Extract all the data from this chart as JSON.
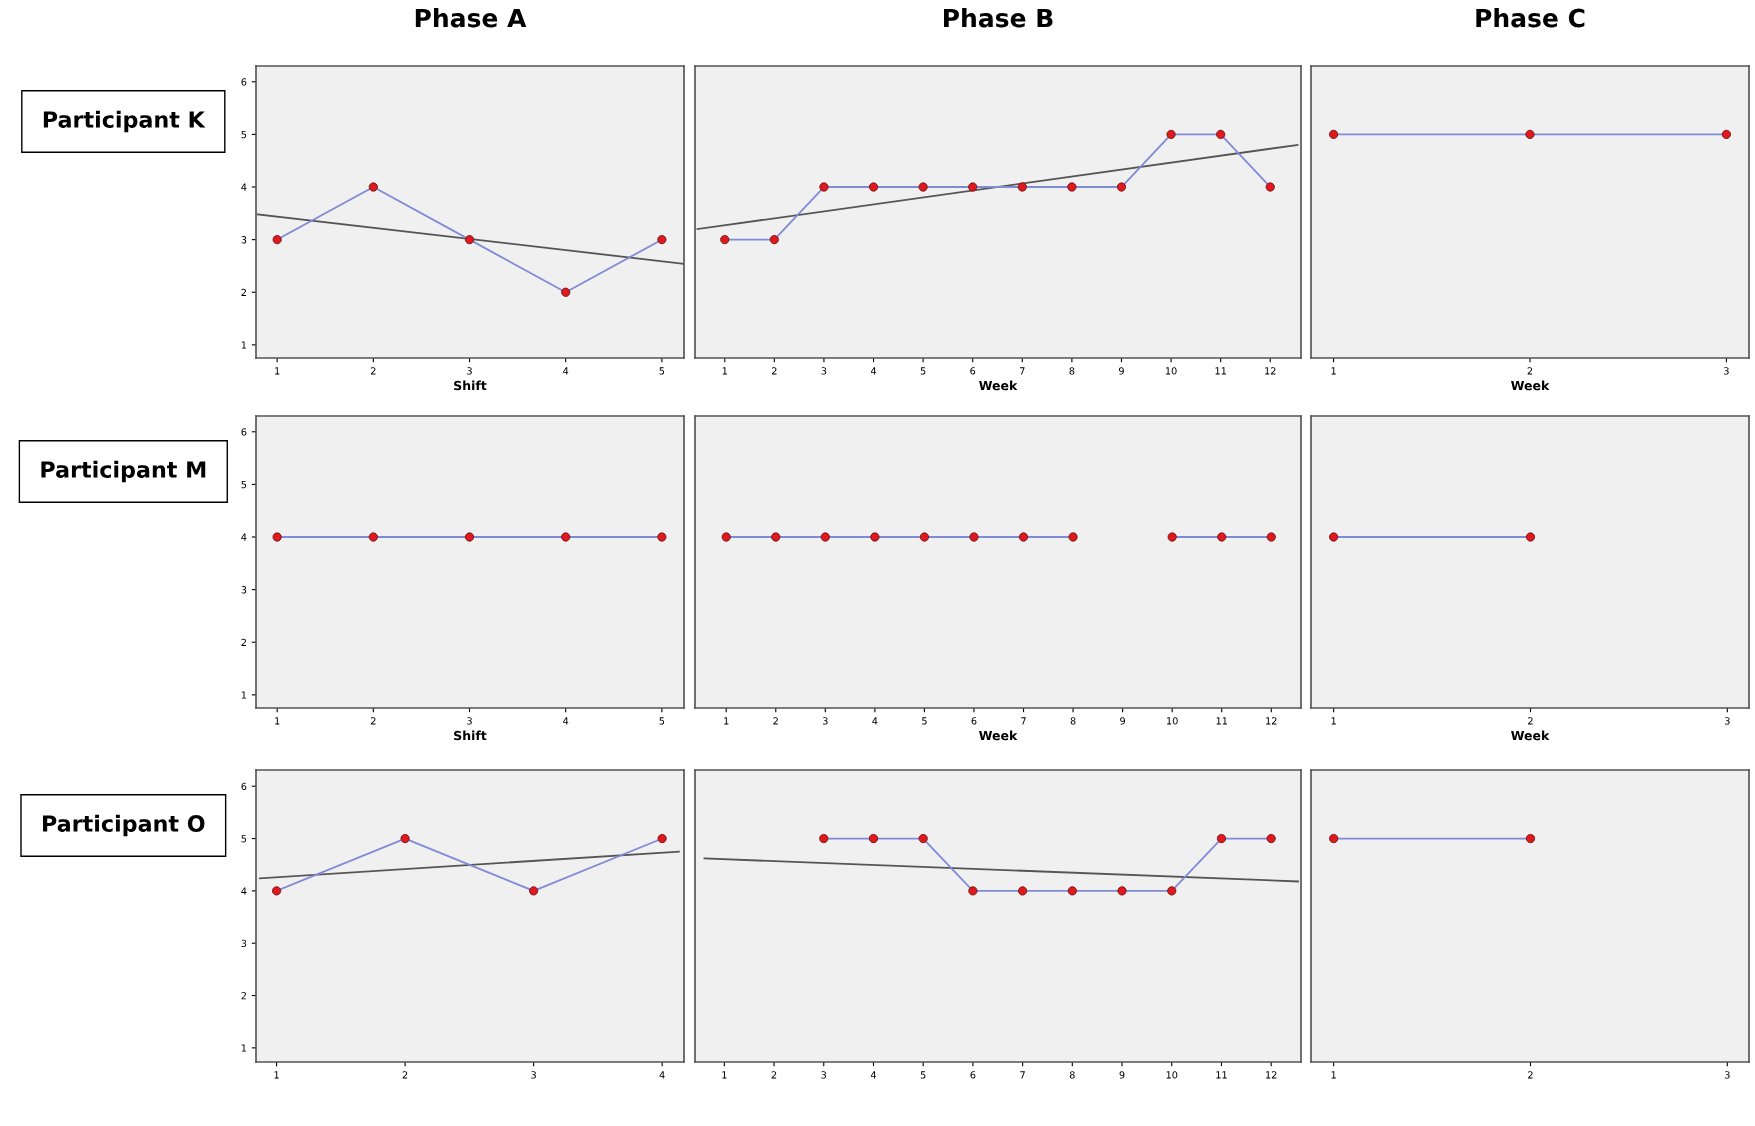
{
  "chart_data": [
    {
      "type": "line",
      "title": "Phase A",
      "ylabel": "Participant K",
      "xlabel": "Shift",
      "x": [
        1,
        2,
        3,
        4,
        5
      ],
      "xlim": [
        0.78,
        5.23
      ],
      "xticks": [
        1,
        2,
        3,
        4,
        5
      ],
      "ylim": [
        0.75,
        6.3
      ],
      "yticks": [
        1,
        2,
        3,
        4,
        5,
        6
      ],
      "marker": "circle",
      "grid": false,
      "series": [
        {
          "color": "#7f8bd6",
          "values": [
            3,
            4,
            3,
            2,
            3
          ]
        },
        {
          "type": "line",
          "marker": "none",
          "color": "#555555",
          "x": [
            0.8,
            5.23
          ],
          "values": [
            3.48,
            2.54
          ]
        }
      ]
    },
    {
      "type": "line",
      "title": "Phase B",
      "xlabel": "Week",
      "x": [
        1,
        2,
        3,
        4,
        5,
        6,
        7,
        8,
        9,
        10,
        11,
        12
      ],
      "xlim": [
        0.4,
        12.62
      ],
      "xticks": [
        1,
        2,
        3,
        4,
        5,
        6,
        7,
        8,
        9,
        10,
        11,
        12
      ],
      "ylim": [
        0.75,
        6.3
      ],
      "tick_labels": "x",
      "marker": "circle",
      "grid": false,
      "series": [
        {
          "color": "#7f8bd6",
          "values": [
            3,
            3,
            4,
            4,
            4,
            4,
            4,
            4,
            4,
            5,
            5,
            4
          ]
        },
        {
          "type": "line",
          "marker": "none",
          "color": "#555555",
          "x": [
            0.45,
            12.55
          ],
          "values": [
            3.2,
            4.8
          ]
        }
      ]
    },
    {
      "type": "line",
      "title": "Phase C",
      "xlabel": "Week",
      "x": [
        1,
        2,
        3
      ],
      "xlim": [
        0.885,
        3.115
      ],
      "xticks": [
        1,
        2,
        3
      ],
      "ylim": [
        0.75,
        6.3
      ],
      "tick_labels": "x",
      "marker": "circle",
      "grid": false,
      "series": [
        {
          "color": "#7f8bd6",
          "values": [
            5,
            5,
            5
          ]
        }
      ]
    },
    {
      "type": "line",
      "ylabel": "Participant M",
      "xlabel": "Shift",
      "x": [
        1,
        2,
        3,
        4,
        5
      ],
      "xlim": [
        0.78,
        5.23
      ],
      "xticks": [
        1,
        2,
        3,
        4,
        5
      ],
      "ylim": [
        0.75,
        6.3
      ],
      "yticks": [
        1,
        2,
        3,
        4,
        5,
        6
      ],
      "marker": "circle",
      "grid": false,
      "series": [
        {
          "color": "#7f8bd6",
          "values": [
            4,
            4,
            4,
            4,
            4
          ]
        }
      ]
    },
    {
      "type": "line",
      "xlabel": "Week",
      "x": [
        1,
        2,
        3,
        4,
        5,
        6,
        7,
        8,
        9,
        10,
        11,
        12
      ],
      "xlim": [
        0.37,
        12.6
      ],
      "xticks": [
        1,
        2,
        3,
        4,
        5,
        6,
        7,
        8,
        9,
        10,
        11,
        12
      ],
      "ylim": [
        0.75,
        6.3
      ],
      "tick_labels": "x",
      "marker": "circle",
      "grid": false,
      "series": [
        {
          "color": "#7f8bd6",
          "values": [
            4,
            4,
            4,
            4,
            4,
            4,
            4,
            4,
            null,
            4,
            4,
            4
          ]
        }
      ]
    },
    {
      "type": "line",
      "xlabel": "Week",
      "x": [
        1,
        2
      ],
      "xlim": [
        0.885,
        3.11
      ],
      "xticks": [
        1,
        2,
        3
      ],
      "ylim": [
        0.75,
        6.3
      ],
      "tick_labels": "x",
      "marker": "circle",
      "grid": false,
      "series": [
        {
          "color": "#7f8bd6",
          "values": [
            4,
            4
          ]
        }
      ]
    },
    {
      "type": "line",
      "ylabel": "Participant O",
      "x": [
        1,
        2,
        3,
        4
      ],
      "xlim": [
        0.84,
        4.17
      ],
      "xticks": [
        1,
        2,
        3,
        4
      ],
      "ylim": [
        0.73,
        6.31
      ],
      "yticks": [
        1,
        2,
        3,
        4,
        5,
        6
      ],
      "marker": "circle",
      "grid": false,
      "series": [
        {
          "color": "#7f8bd6",
          "values": [
            4,
            5,
            4,
            5
          ]
        },
        {
          "type": "line",
          "marker": "none",
          "color": "#555555",
          "x": [
            0.87,
            4.13
          ],
          "values": [
            4.24,
            4.75
          ]
        }
      ]
    },
    {
      "type": "line",
      "x": [
        3,
        4,
        5,
        6,
        7,
        8,
        9,
        10,
        11,
        12
      ],
      "xlim": [
        0.41,
        12.6
      ],
      "xticks": [
        1,
        2,
        3,
        4,
        5,
        6,
        7,
        8,
        9,
        10,
        11,
        12
      ],
      "ylim": [
        0.73,
        6.31
      ],
      "tick_labels": "x",
      "marker": "circle",
      "grid": false,
      "series": [
        {
          "color": "#7f8bd6",
          "values": [
            5,
            5,
            5,
            4,
            4,
            4,
            4,
            4,
            5,
            5
          ]
        },
        {
          "type": "line",
          "marker": "none",
          "color": "#555555",
          "x": [
            0.6,
            12.54
          ],
          "values": [
            4.62,
            4.18
          ]
        }
      ]
    },
    {
      "type": "line",
      "x": [
        1,
        2
      ],
      "xlim": [
        0.885,
        3.11
      ],
      "xticks": [
        1,
        2,
        3
      ],
      "ylim": [
        0.73,
        6.31
      ],
      "tick_labels": "x",
      "marker": "circle",
      "grid": false,
      "series": [
        {
          "color": "#7f8bd6",
          "values": [
            5,
            5
          ]
        }
      ]
    }
  ]
}
